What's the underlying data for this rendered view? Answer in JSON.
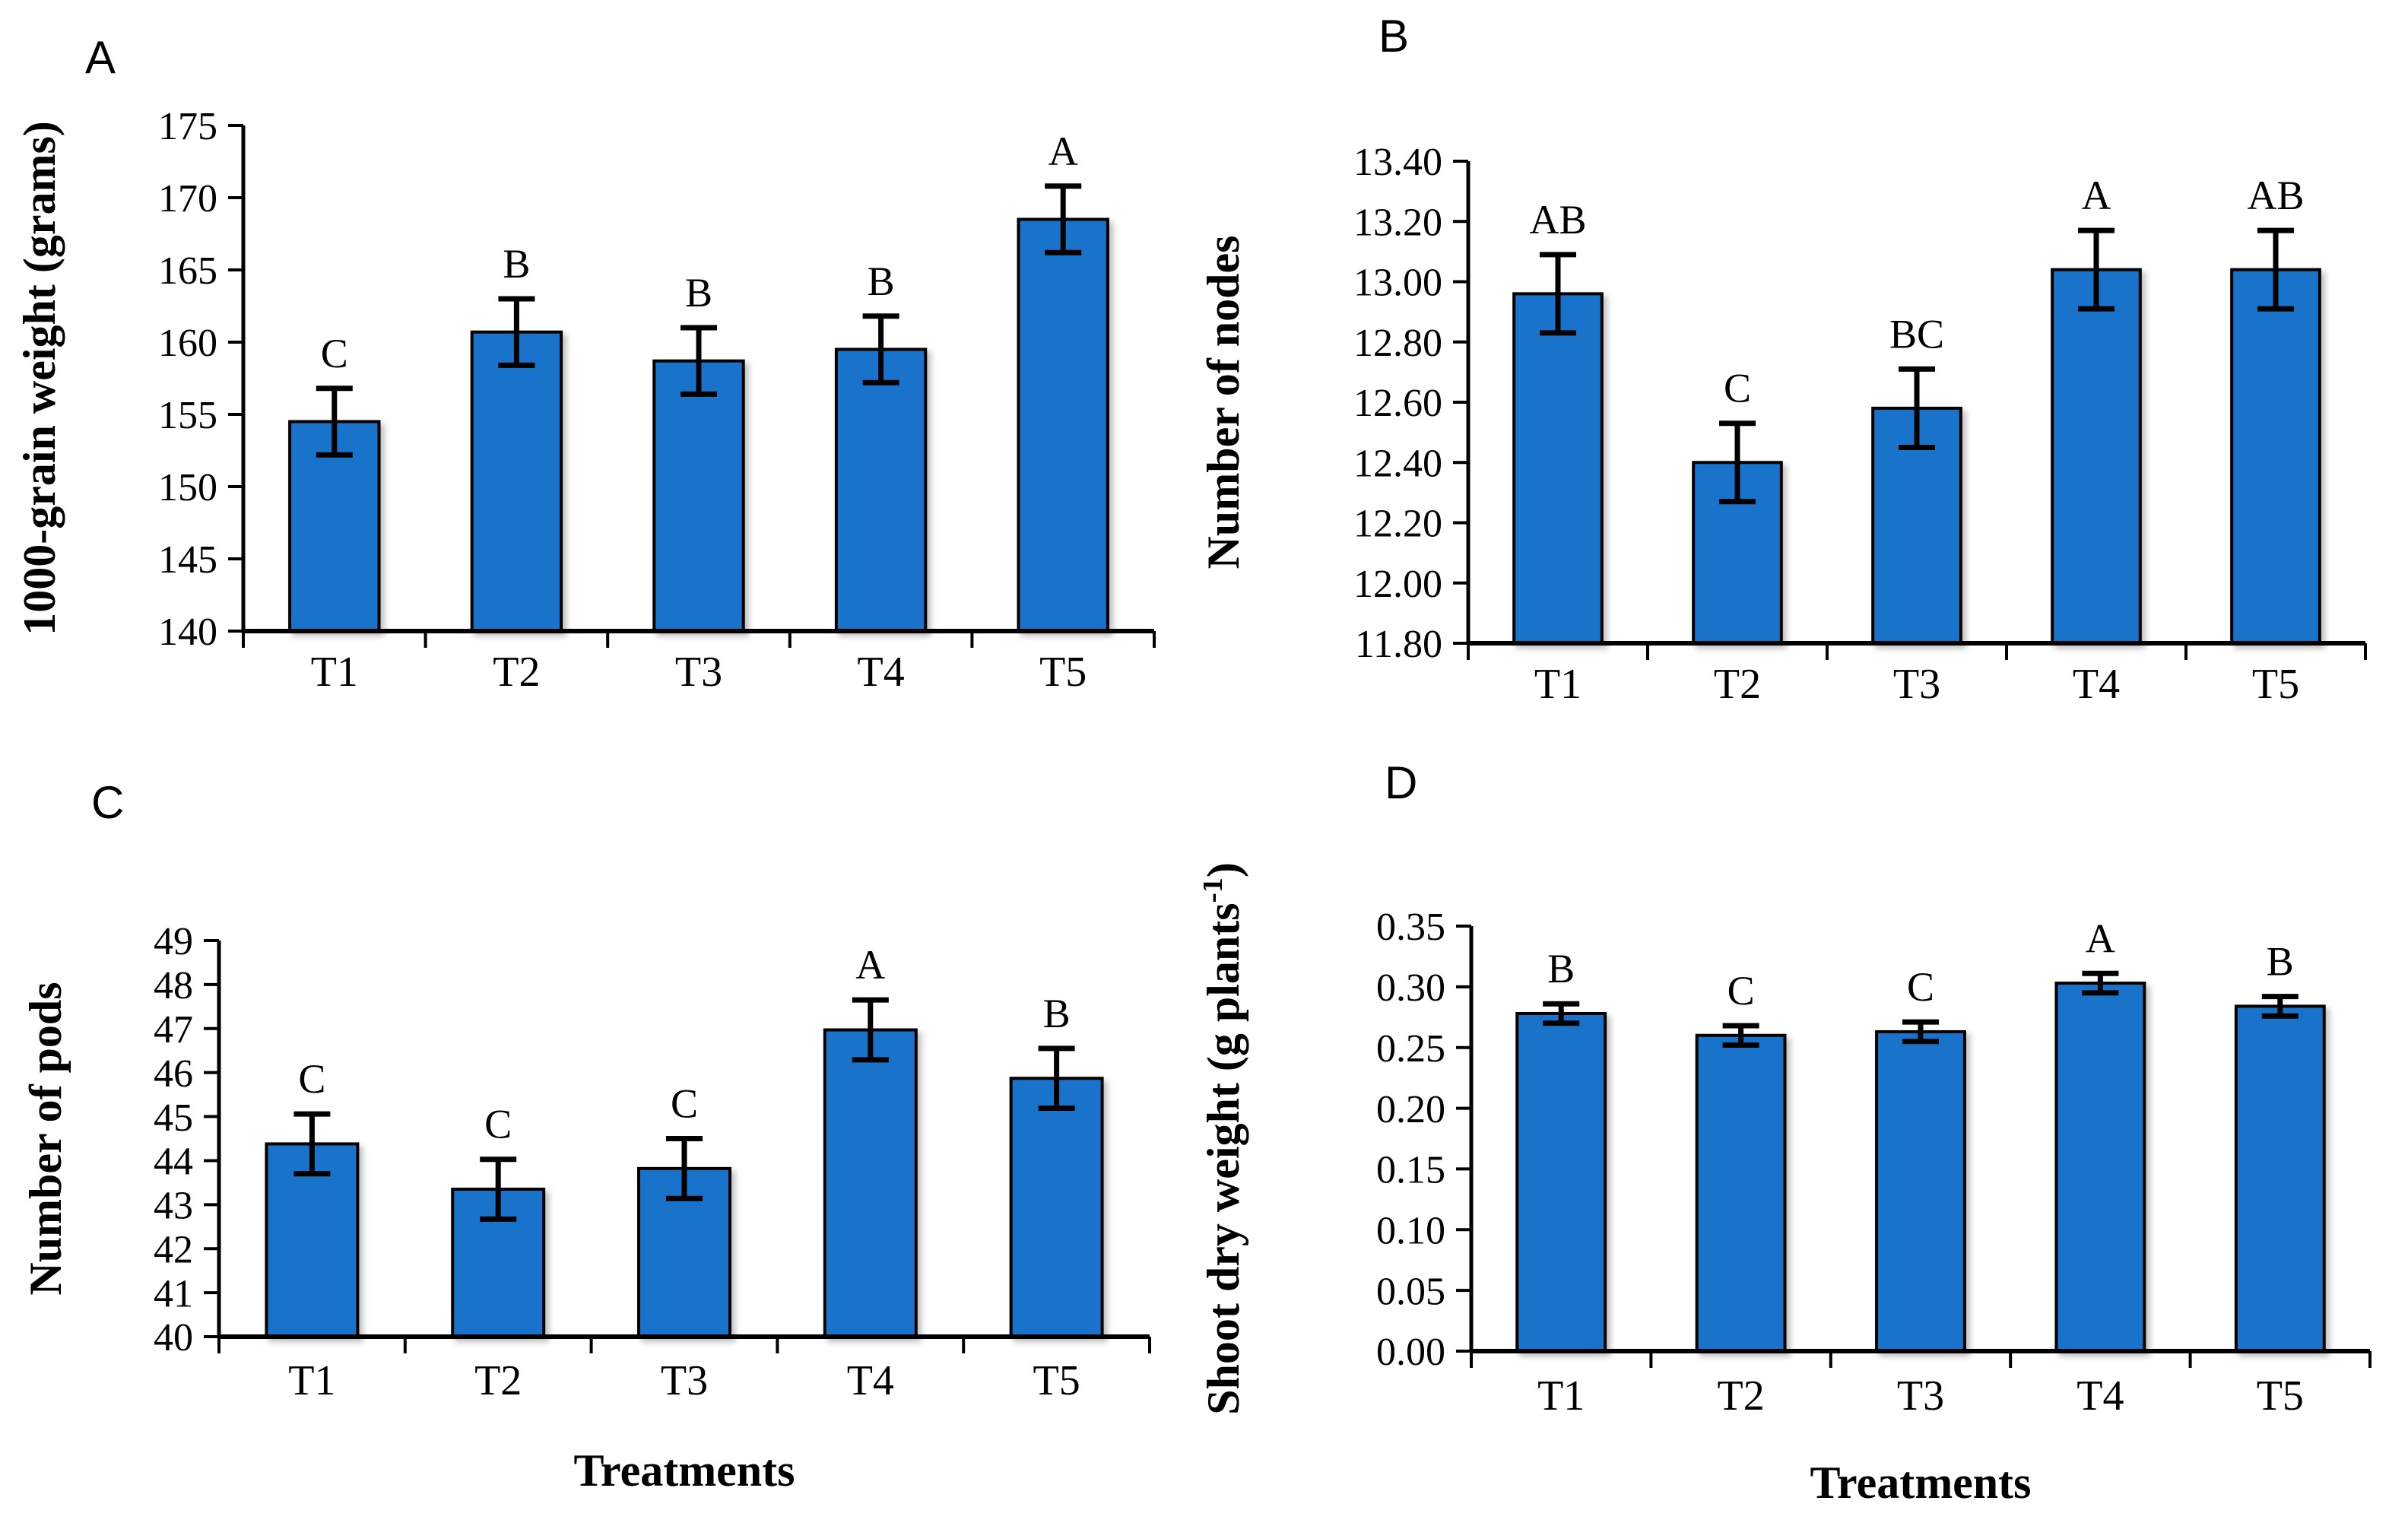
{
  "figure": {
    "background": "#ffffff",
    "bar_fill": "#1a73cb",
    "bar_stroke": "#000000",
    "axis_color": "#000000",
    "text_color": "#000000"
  },
  "chart_data": [
    {
      "type": "bar",
      "panel_label": "A",
      "title": "",
      "ylabel": "1000-grain weight (grams)",
      "xlabel": "",
      "categories": [
        "T1",
        "T2",
        "T3",
        "T4",
        "T5"
      ],
      "values": [
        154.5,
        160.7,
        158.7,
        159.5,
        168.5
      ],
      "errors": [
        2.3,
        2.3,
        2.3,
        2.3,
        2.3
      ],
      "sig_letters": [
        "C",
        "B",
        "B",
        "B",
        "A"
      ],
      "ylim": [
        140,
        175
      ],
      "ytick_step": 5,
      "ytick_decimals": 0,
      "grid": false,
      "legend": false
    },
    {
      "type": "bar",
      "panel_label": "B",
      "title": "",
      "ylabel": "Number of nodes",
      "xlabel": "",
      "categories": [
        "T1",
        "T2",
        "T3",
        "T4",
        "T5"
      ],
      "values": [
        12.96,
        12.4,
        12.58,
        13.04,
        13.04
      ],
      "errors": [
        0.13,
        0.13,
        0.13,
        0.13,
        0.13
      ],
      "sig_letters": [
        "AB",
        "C",
        "BC",
        "A",
        "AB"
      ],
      "ylim": [
        11.8,
        13.4
      ],
      "ytick_step": 0.2,
      "ytick_decimals": 2,
      "grid": false,
      "legend": false
    },
    {
      "type": "bar",
      "panel_label": "C",
      "title": "",
      "ylabel": "Number of pods",
      "xlabel": "Treatments",
      "categories": [
        "T1",
        "T2",
        "T3",
        "T4",
        "T5"
      ],
      "values": [
        44.38,
        43.35,
        43.82,
        46.97,
        45.87
      ],
      "errors": [
        0.68,
        0.68,
        0.68,
        0.68,
        0.68
      ],
      "sig_letters": [
        "C",
        "C",
        "C",
        "A",
        "B"
      ],
      "ylim": [
        40,
        49
      ],
      "ytick_step": 1,
      "ytick_decimals": 0,
      "grid": false,
      "legend": false
    },
    {
      "type": "bar",
      "panel_label": "D",
      "title": "",
      "ylabel": "Shoot dry weight  (g plants⁻¹)",
      "xlabel": "Treatments",
      "categories": [
        "T1",
        "T2",
        "T3",
        "T4",
        "T5"
      ],
      "values": [
        0.278,
        0.26,
        0.263,
        0.303,
        0.284
      ],
      "errors": [
        0.008,
        0.008,
        0.008,
        0.008,
        0.008
      ],
      "sig_letters": [
        "B",
        "C",
        "C",
        "A",
        "B"
      ],
      "ylim": [
        0.0,
        0.35
      ],
      "ytick_step": 0.05,
      "ytick_decimals": 2,
      "grid": false,
      "legend": false
    }
  ]
}
